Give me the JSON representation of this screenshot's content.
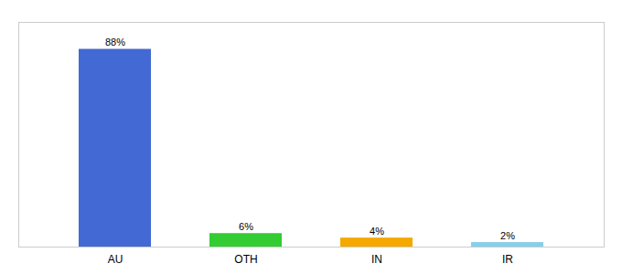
{
  "chart_data": {
    "type": "bar",
    "categories": [
      "AU",
      "OTH",
      "IN",
      "IR"
    ],
    "values": [
      88,
      6,
      4,
      2
    ],
    "value_labels": [
      "88%",
      "6%",
      "4%",
      "2%"
    ],
    "colors": [
      "#4269d4",
      "#33cc33",
      "#f5a800",
      "#87ceeb"
    ],
    "ylim": [
      0,
      100
    ],
    "grid": false,
    "data_labels": true,
    "tick_labels": "x"
  }
}
